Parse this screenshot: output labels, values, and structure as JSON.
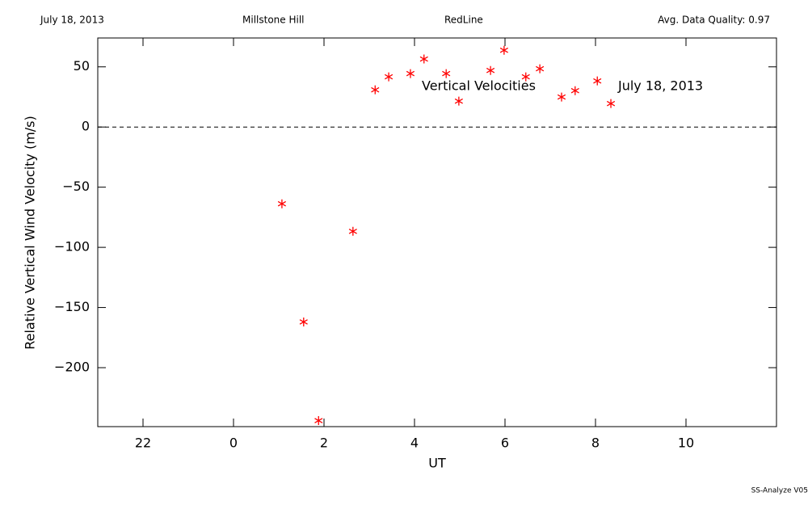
{
  "chart_data": {
    "type": "scatter",
    "header": [
      "July 18, 2013",
      "Millstone Hill",
      "RedLine",
      "Avg. Data Quality: 0.97"
    ],
    "xlabel": "UT",
    "ylabel": "Relative Vertical Wind Velocity (m/s)",
    "annotations": [
      "Vertical Velocities",
      "July 18, 2013"
    ],
    "footer": "SS-Analyze V05",
    "xlim": [
      21,
      36
    ],
    "ylim": [
      -249,
      74
    ],
    "xticks": [
      22,
      {
        "value": 24,
        "label": "0"
      },
      {
        "value": 26,
        "label": "2"
      },
      {
        "value": 28,
        "label": "4"
      },
      {
        "value": 30,
        "label": "6"
      },
      {
        "value": 32,
        "label": "8"
      },
      {
        "value": 34,
        "label": "10"
      }
    ],
    "yticks": [
      {
        "value": -200,
        "label": "−200"
      },
      {
        "value": -150,
        "label": "−150"
      },
      {
        "value": -100,
        "label": "−100"
      },
      {
        "value": -50,
        "label": "−50"
      },
      0,
      50
    ],
    "hline": 0,
    "series": [
      {
        "color": "#ff0000",
        "x": [
          25.07,
          25.55,
          25.88,
          26.64,
          27.13,
          27.43,
          27.91,
          28.21,
          28.7,
          28.98,
          29.68,
          29.98,
          30.46,
          30.77,
          31.25,
          31.55,
          32.04,
          32.34
        ],
        "values": [
          -63.8,
          -162,
          -244,
          -86.7,
          30.9,
          41.7,
          44.4,
          56.5,
          44.4,
          21.5,
          47,
          63.8,
          41.7,
          48.4,
          24.9,
          30.2,
          38.3,
          19.5
        ]
      }
    ]
  }
}
